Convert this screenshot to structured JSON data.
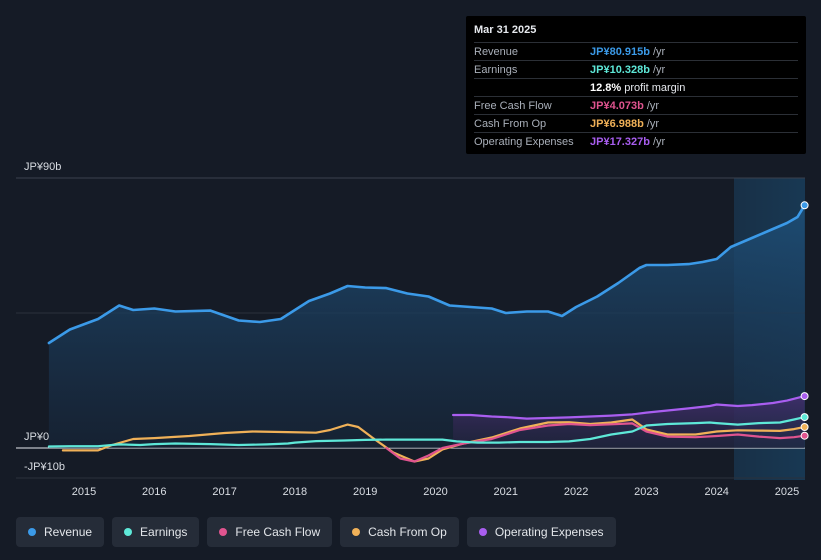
{
  "tooltip": {
    "date": "Mar 31 2025",
    "rows": [
      {
        "label": "Revenue",
        "value": "JP¥80.915b",
        "unit": "/yr",
        "color": "#3b9ae8"
      },
      {
        "label": "Earnings",
        "value": "JP¥10.328b",
        "unit": "/yr",
        "color": "#5ee8d8"
      },
      {
        "label": "",
        "value": "12.8%",
        "unit": "profit margin",
        "color": "#ffffff"
      },
      {
        "label": "Free Cash Flow",
        "value": "JP¥4.073b",
        "unit": "/yr",
        "color": "#e0548f"
      },
      {
        "label": "Cash From Op",
        "value": "JP¥6.988b",
        "unit": "/yr",
        "color": "#f0b158"
      },
      {
        "label": "Operating Expenses",
        "value": "JP¥17.327b",
        "unit": "/yr",
        "color": "#a95ef0"
      }
    ]
  },
  "legend": [
    {
      "label": "Revenue",
      "color": "#3b9ae8"
    },
    {
      "label": "Earnings",
      "color": "#5ee8d8"
    },
    {
      "label": "Free Cash Flow",
      "color": "#e0548f"
    },
    {
      "label": "Cash From Op",
      "color": "#f0b158"
    },
    {
      "label": "Operating Expenses",
      "color": "#a95ef0"
    }
  ],
  "chart_data": {
    "type": "line",
    "ylim": [
      -10,
      90
    ],
    "y_tick_labels": {
      "top": "JP¥90b",
      "zero": "JP¥0",
      "bottom": "-JP¥10b"
    },
    "x_ticks": [
      {
        "year": 2015,
        "label": "2015"
      },
      {
        "year": 2016,
        "label": "2016"
      },
      {
        "year": 2017,
        "label": "2017"
      },
      {
        "year": 2018,
        "label": "2018"
      },
      {
        "year": 2019,
        "label": "2019"
      },
      {
        "year": 2020,
        "label": "2020"
      },
      {
        "year": 2021,
        "label": "2021"
      },
      {
        "year": 2022,
        "label": "2022"
      },
      {
        "year": 2023,
        "label": "2023"
      },
      {
        "year": 2024,
        "label": "2024"
      },
      {
        "year": 2025,
        "label": "2025"
      }
    ],
    "series": [
      {
        "name": "Revenue",
        "color": "#3b9ae8",
        "area": true,
        "points": [
          [
            2014.5,
            35
          ],
          [
            2014.8,
            39.5
          ],
          [
            2015.2,
            43
          ],
          [
            2015.5,
            47.5
          ],
          [
            2015.7,
            46
          ],
          [
            2016.0,
            46.5
          ],
          [
            2016.3,
            45.5
          ],
          [
            2016.8,
            45.8
          ],
          [
            2017.2,
            42.5
          ],
          [
            2017.5,
            42
          ],
          [
            2017.8,
            43
          ],
          [
            2018.2,
            49
          ],
          [
            2018.5,
            51.5
          ],
          [
            2018.75,
            54
          ],
          [
            2019.0,
            53.5
          ],
          [
            2019.3,
            53.3
          ],
          [
            2019.6,
            51.5
          ],
          [
            2019.9,
            50.5
          ],
          [
            2020.2,
            47.5
          ],
          [
            2020.5,
            47
          ],
          [
            2020.8,
            46.5
          ],
          [
            2021.0,
            45
          ],
          [
            2021.3,
            45.5
          ],
          [
            2021.6,
            45.5
          ],
          [
            2021.8,
            44
          ],
          [
            2022.0,
            47
          ],
          [
            2022.3,
            50.5
          ],
          [
            2022.6,
            55
          ],
          [
            2022.9,
            60
          ],
          [
            2023.0,
            61
          ],
          [
            2023.3,
            61
          ],
          [
            2023.6,
            61.3
          ],
          [
            2023.8,
            62
          ],
          [
            2024.0,
            63
          ],
          [
            2024.2,
            67
          ],
          [
            2024.5,
            70
          ],
          [
            2024.8,
            73
          ],
          [
            2025.0,
            75
          ],
          [
            2025.15,
            77
          ],
          [
            2025.25,
            80.9
          ]
        ]
      },
      {
        "name": "Operating Expenses",
        "color": "#a95ef0",
        "area": true,
        "points": [
          [
            2020.25,
            11
          ],
          [
            2020.5,
            11
          ],
          [
            2020.8,
            10.5
          ],
          [
            2021.0,
            10.3
          ],
          [
            2021.3,
            9.8
          ],
          [
            2021.6,
            10
          ],
          [
            2021.9,
            10.2
          ],
          [
            2022.2,
            10.5
          ],
          [
            2022.5,
            10.8
          ],
          [
            2022.8,
            11.2
          ],
          [
            2023.0,
            11.8
          ],
          [
            2023.3,
            12.5
          ],
          [
            2023.6,
            13.2
          ],
          [
            2023.9,
            14
          ],
          [
            2024.0,
            14.5
          ],
          [
            2024.3,
            14
          ],
          [
            2024.5,
            14.3
          ],
          [
            2024.8,
            15
          ],
          [
            2025.0,
            15.8
          ],
          [
            2025.25,
            17.3
          ]
        ]
      },
      {
        "name": "Earnings",
        "color": "#5ee8d8",
        "area": false,
        "points": [
          [
            2014.5,
            0.5
          ],
          [
            2014.8,
            0.6
          ],
          [
            2015.2,
            0.6
          ],
          [
            2015.5,
            1.2
          ],
          [
            2015.8,
            1.0
          ],
          [
            2016.0,
            1.3
          ],
          [
            2016.3,
            1.5
          ],
          [
            2016.8,
            1.3
          ],
          [
            2017.2,
            1.0
          ],
          [
            2017.6,
            1.2
          ],
          [
            2017.9,
            1.5
          ],
          [
            2018.0,
            1.8
          ],
          [
            2018.3,
            2.3
          ],
          [
            2018.7,
            2.5
          ],
          [
            2019.0,
            2.7
          ],
          [
            2019.3,
            2.8
          ],
          [
            2019.6,
            2.8
          ],
          [
            2019.9,
            2.8
          ],
          [
            2020.1,
            2.8
          ],
          [
            2020.3,
            2.2
          ],
          [
            2020.6,
            1.8
          ],
          [
            2020.9,
            1.8
          ],
          [
            2021.2,
            2.0
          ],
          [
            2021.6,
            2.0
          ],
          [
            2021.9,
            2.2
          ],
          [
            2022.2,
            3.0
          ],
          [
            2022.5,
            4.5
          ],
          [
            2022.8,
            5.5
          ],
          [
            2023.0,
            7.5
          ],
          [
            2023.3,
            8
          ],
          [
            2023.7,
            8.3
          ],
          [
            2023.9,
            8.5
          ],
          [
            2024.0,
            8.3
          ],
          [
            2024.3,
            7.8
          ],
          [
            2024.6,
            8.3
          ],
          [
            2024.9,
            8.5
          ],
          [
            2025.1,
            9.5
          ],
          [
            2025.25,
            10.3
          ]
        ]
      },
      {
        "name": "Free Cash Flow",
        "color": "#e0548f",
        "area": false,
        "points": [
          [
            2019.3,
            0
          ],
          [
            2019.5,
            -3.5
          ],
          [
            2019.7,
            -4.5
          ],
          [
            2019.9,
            -2.5
          ],
          [
            2020.1,
            0
          ],
          [
            2020.4,
            1.5
          ],
          [
            2020.8,
            3
          ],
          [
            2021.2,
            6
          ],
          [
            2021.6,
            7.5
          ],
          [
            2021.9,
            8
          ],
          [
            2022.2,
            7.6
          ],
          [
            2022.5,
            7.9
          ],
          [
            2022.8,
            8.2
          ],
          [
            2023.0,
            5.5
          ],
          [
            2023.3,
            3.8
          ],
          [
            2023.7,
            3.6
          ],
          [
            2024.0,
            4
          ],
          [
            2024.3,
            4.5
          ],
          [
            2024.6,
            3.8
          ],
          [
            2024.9,
            3.3
          ],
          [
            2025.1,
            3.6
          ],
          [
            2025.25,
            4.1
          ]
        ]
      },
      {
        "name": "Cash From Op",
        "color": "#f0b158",
        "area": false,
        "points": [
          [
            2014.7,
            -0.8
          ],
          [
            2015.2,
            -0.8
          ],
          [
            2015.4,
            1.0
          ],
          [
            2015.7,
            3.0
          ],
          [
            2016.0,
            3.3
          ],
          [
            2016.5,
            4.0
          ],
          [
            2017.0,
            5.0
          ],
          [
            2017.4,
            5.5
          ],
          [
            2017.9,
            5.3
          ],
          [
            2018.3,
            5.1
          ],
          [
            2018.5,
            6.0
          ],
          [
            2018.75,
            7.8
          ],
          [
            2018.9,
            7.0
          ],
          [
            2019.1,
            3.5
          ],
          [
            2019.4,
            -1.5
          ],
          [
            2019.7,
            -4.5
          ],
          [
            2019.9,
            -3.5
          ],
          [
            2020.1,
            -0.5
          ],
          [
            2020.4,
            1.5
          ],
          [
            2020.8,
            3.5
          ],
          [
            2021.2,
            6.5
          ],
          [
            2021.6,
            8.5
          ],
          [
            2021.9,
            8.6
          ],
          [
            2022.2,
            8.0
          ],
          [
            2022.5,
            8.5
          ],
          [
            2022.8,
            9.5
          ],
          [
            2023.0,
            6.2
          ],
          [
            2023.3,
            4.5
          ],
          [
            2023.7,
            4.5
          ],
          [
            2024.0,
            5.5
          ],
          [
            2024.3,
            5.9
          ],
          [
            2024.6,
            5.8
          ],
          [
            2024.9,
            5.7
          ],
          [
            2025.1,
            6.3
          ],
          [
            2025.25,
            7.0
          ]
        ]
      }
    ]
  }
}
